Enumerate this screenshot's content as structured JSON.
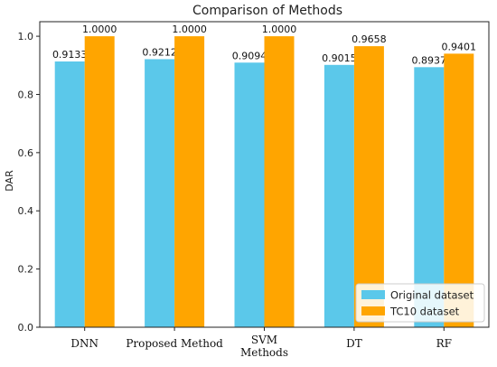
{
  "chart_data": {
    "type": "bar",
    "title": "Comparison of Methods",
    "ylabel": "DAR",
    "xlabel": "",
    "categories": [
      "DNN",
      "Proposed Method",
      "SVM\nMethods",
      "DT",
      "RF"
    ],
    "ylim": [
      0,
      1.05
    ],
    "yticks": [
      0.0,
      0.2,
      0.4,
      0.6,
      0.8,
      1.0
    ],
    "legend_position": "bottom-right",
    "series": [
      {
        "name": "Original dataset",
        "color": "#5bc8ea",
        "values": [
          0.9133,
          0.9212,
          0.9094,
          0.9015,
          0.8937
        ],
        "labels": [
          "0.9133",
          "0.9212",
          "0.9094",
          "0.9015",
          "0.8937"
        ]
      },
      {
        "name": "TC10 dataset",
        "color": "#ffa500",
        "values": [
          1.0,
          1.0,
          1.0,
          0.9658,
          0.9401
        ],
        "labels": [
          "1.0000",
          "1.0000",
          "1.0000",
          "0.9658",
          "0.9401"
        ]
      }
    ]
  }
}
